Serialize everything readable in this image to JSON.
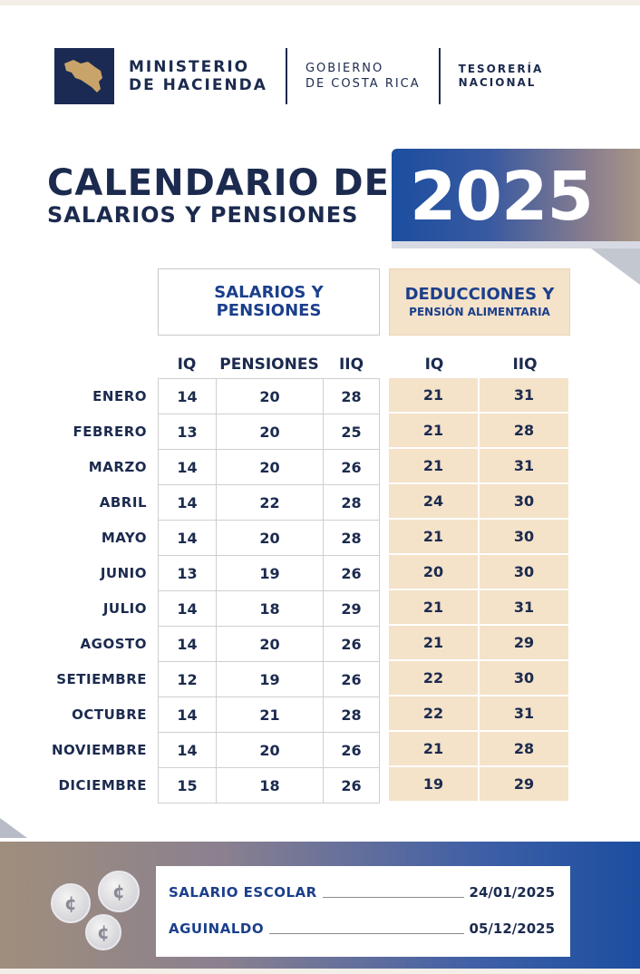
{
  "header": {
    "ministry_line1": "MINISTERIO",
    "ministry_line2": "DE HACIENDA",
    "gov_line1": "GOBIERNO",
    "gov_line2": "DE COSTA RICA",
    "tes_line1": "TESORERÍA",
    "tes_line2": "NACIONAL"
  },
  "title": {
    "line1": "CALENDARIO DE",
    "line2": "SALARIOS Y PENSIONES",
    "year": "2025"
  },
  "table": {
    "group_salarios_l1": "SALARIOS Y",
    "group_salarios_l2": "PENSIONES",
    "group_deducciones_l1": "DEDUCCIONES Y",
    "group_deducciones_l2": "PENSIÓN ALIMENTARIA",
    "columns": [
      "IQ",
      "PENSIONES",
      "IIQ",
      "IQ",
      "IIQ"
    ],
    "rows": [
      {
        "month": "ENERO",
        "iq": "14",
        "pensiones": "20",
        "iiq": "28",
        "ded_iq": "21",
        "ded_iiq": "31"
      },
      {
        "month": "FEBRERO",
        "iq": "13",
        "pensiones": "20",
        "iiq": "25",
        "ded_iq": "21",
        "ded_iiq": "28"
      },
      {
        "month": "MARZO",
        "iq": "14",
        "pensiones": "20",
        "iiq": "26",
        "ded_iq": "21",
        "ded_iiq": "31"
      },
      {
        "month": "ABRIL",
        "iq": "14",
        "pensiones": "22",
        "iiq": "28",
        "ded_iq": "24",
        "ded_iiq": "30"
      },
      {
        "month": "MAYO",
        "iq": "14",
        "pensiones": "20",
        "iiq": "28",
        "ded_iq": "21",
        "ded_iiq": "30"
      },
      {
        "month": "JUNIO",
        "iq": "13",
        "pensiones": "19",
        "iiq": "26",
        "ded_iq": "20",
        "ded_iiq": "30"
      },
      {
        "month": "JULIO",
        "iq": "14",
        "pensiones": "18",
        "iiq": "29",
        "ded_iq": "21",
        "ded_iiq": "31"
      },
      {
        "month": "AGOSTO",
        "iq": "14",
        "pensiones": "20",
        "iiq": "26",
        "ded_iq": "21",
        "ded_iiq": "29"
      },
      {
        "month": "SETIEMBRE",
        "iq": "12",
        "pensiones": "19",
        "iiq": "26",
        "ded_iq": "22",
        "ded_iiq": "30"
      },
      {
        "month": "OCTUBRE",
        "iq": "14",
        "pensiones": "21",
        "iiq": "28",
        "ded_iq": "22",
        "ded_iiq": "31"
      },
      {
        "month": "NOVIEMBRE",
        "iq": "14",
        "pensiones": "20",
        "iiq": "26",
        "ded_iq": "21",
        "ded_iiq": "28"
      },
      {
        "month": "DICIEMBRE",
        "iq": "15",
        "pensiones": "18",
        "iiq": "26",
        "ded_iq": "19",
        "ded_iiq": "29"
      }
    ]
  },
  "footer": {
    "coin_symbol": "¢",
    "salario_escolar_label": "SALARIO ESCOLAR",
    "salario_escolar_date": "24/01/2025",
    "aguinaldo_label": "AGUINALDO",
    "aguinaldo_date": "05/12/2025"
  },
  "colors": {
    "navy": "#1b2a4e",
    "blue": "#1b4ea0",
    "beige": "#f4e2c9"
  }
}
